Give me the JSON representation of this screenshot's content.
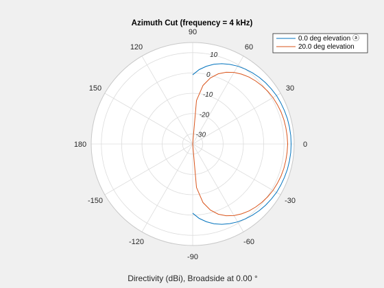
{
  "chart_data": {
    "type": "polar-line",
    "title": "Azimuth Cut (frequency = 4 kHz)",
    "xlabel": "Directivity (dBi), Broadside at 0.00 °",
    "angle_ticks": [
      "0",
      "30",
      "60",
      "90",
      "120",
      "150",
      "180",
      "-150",
      "-120",
      "-90",
      "-60",
      "-30"
    ],
    "angle_tick_values": [
      0,
      30,
      60,
      90,
      120,
      150,
      180,
      -150,
      -120,
      -90,
      -60,
      -30
    ],
    "r_ticks": [
      "-30",
      "-20",
      "-10",
      "0",
      "10"
    ],
    "r_tick_values": [
      -30,
      -20,
      -10,
      0,
      10
    ],
    "rlim": [
      -35,
      15
    ],
    "angle_step_deg": 5,
    "grid": true,
    "legend_location": "top-right",
    "series": [
      {
        "name": "0.0 deg elevation ⓐ",
        "color": "#0072bd",
        "angles_deg": [
          -90,
          -85,
          -80,
          -75,
          -70,
          -65,
          -60,
          -55,
          -50,
          -45,
          -40,
          -35,
          -30,
          -25,
          -20,
          -15,
          -10,
          -5,
          0,
          5,
          10,
          15,
          20,
          25,
          30,
          35,
          40,
          45,
          50,
          55,
          60,
          65,
          70,
          75,
          80,
          85,
          90
        ],
        "values_dbi": [
          -0.9,
          1.8,
          3.9,
          5.7,
          7.1,
          8.3,
          9.3,
          10.1,
          10.8,
          11.4,
          11.9,
          12.3,
          12.7,
          12.9,
          13.1,
          13.3,
          13.4,
          13.5,
          13.5,
          13.5,
          13.4,
          13.3,
          13.1,
          12.9,
          12.7,
          12.3,
          11.9,
          11.4,
          10.8,
          10.1,
          9.3,
          8.3,
          7.1,
          5.7,
          3.9,
          1.8,
          -0.9
        ]
      },
      {
        "name": "20.0 deg elevation",
        "color": "#d95319",
        "angles_deg": [
          -90,
          -85,
          -80,
          -75,
          -70,
          -65,
          -60,
          -55,
          -50,
          -45,
          -40,
          -35,
          -30,
          -25,
          -20,
          -15,
          -10,
          -5,
          0,
          5,
          10,
          15,
          20,
          25,
          30,
          35,
          40,
          45,
          50,
          55,
          60,
          65,
          70,
          75,
          80,
          85,
          90
        ],
        "values_dbi": [
          -35,
          -13.5,
          -5.7,
          -1.3,
          1.8,
          4.0,
          5.7,
          7.0,
          8.1,
          8.9,
          9.6,
          10.2,
          10.7,
          11.0,
          11.3,
          11.5,
          11.6,
          11.7,
          11.8,
          11.7,
          11.6,
          11.5,
          11.3,
          11.0,
          10.7,
          10.2,
          9.6,
          8.9,
          8.1,
          7.0,
          5.7,
          4.0,
          1.8,
          -1.3,
          -5.7,
          -13.5,
          -35
        ]
      }
    ]
  }
}
